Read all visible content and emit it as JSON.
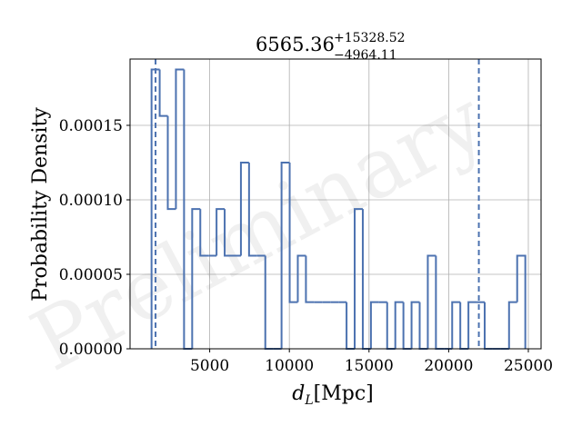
{
  "chart_data": {
    "type": "histogram",
    "title": {
      "value": "6565.36",
      "upper": "+15328.52",
      "lower": "−4964.11"
    },
    "xlabel": {
      "var": "d",
      "sub": "L",
      "unit": "[Mpc]"
    },
    "ylabel": "Probability Density",
    "watermark": "Preliminary",
    "xlim": [
      0,
      25800
    ],
    "ylim": [
      0,
      0.0001945
    ],
    "xticks": [
      5000,
      10000,
      15000,
      20000,
      25000
    ],
    "xtick_labels": [
      "5000",
      "10000",
      "15000",
      "20000",
      "25000"
    ],
    "yticks": [
      0,
      5e-05,
      0.0001,
      0.00015
    ],
    "ytick_labels": [
      "0.00000",
      "0.00005",
      "0.00010",
      "0.00015"
    ],
    "grid": true,
    "line_color": "#4c72b0",
    "bin_edges": [
      1350,
      1860,
      2370,
      2880,
      3390,
      3900,
      4410,
      4920,
      5430,
      5940,
      6450,
      6960,
      7470,
      7980,
      8490,
      9000,
      9510,
      10020,
      10530,
      11040,
      11550,
      12060,
      12570,
      13080,
      13590,
      14100,
      14610,
      15120,
      15630,
      16140,
      16650,
      17160,
      17670,
      18180,
      18690,
      19200,
      19710,
      20220,
      20730,
      21240,
      21750,
      22260,
      22770,
      23280,
      23790,
      24300,
      24810
    ],
    "densities": [
      0.0001875,
      0.0001563,
      9.38e-05,
      0.0001875,
      0,
      9.38e-05,
      6.25e-05,
      6.25e-05,
      9.38e-05,
      6.25e-05,
      6.25e-05,
      0.000125,
      6.25e-05,
      6.25e-05,
      0,
      0,
      0.000125,
      3.13e-05,
      6.25e-05,
      3.13e-05,
      3.13e-05,
      3.13e-05,
      3.13e-05,
      3.13e-05,
      0,
      9.38e-05,
      0,
      3.13e-05,
      3.13e-05,
      0,
      3.13e-05,
      0,
      3.13e-05,
      0,
      6.25e-05,
      0,
      0,
      3.13e-05,
      0,
      3.13e-05,
      3.13e-05,
      0,
      0,
      0,
      3.13e-05,
      6.25e-05
    ],
    "credible_interval_lines": [
      1601.25,
      21893.88
    ]
  }
}
